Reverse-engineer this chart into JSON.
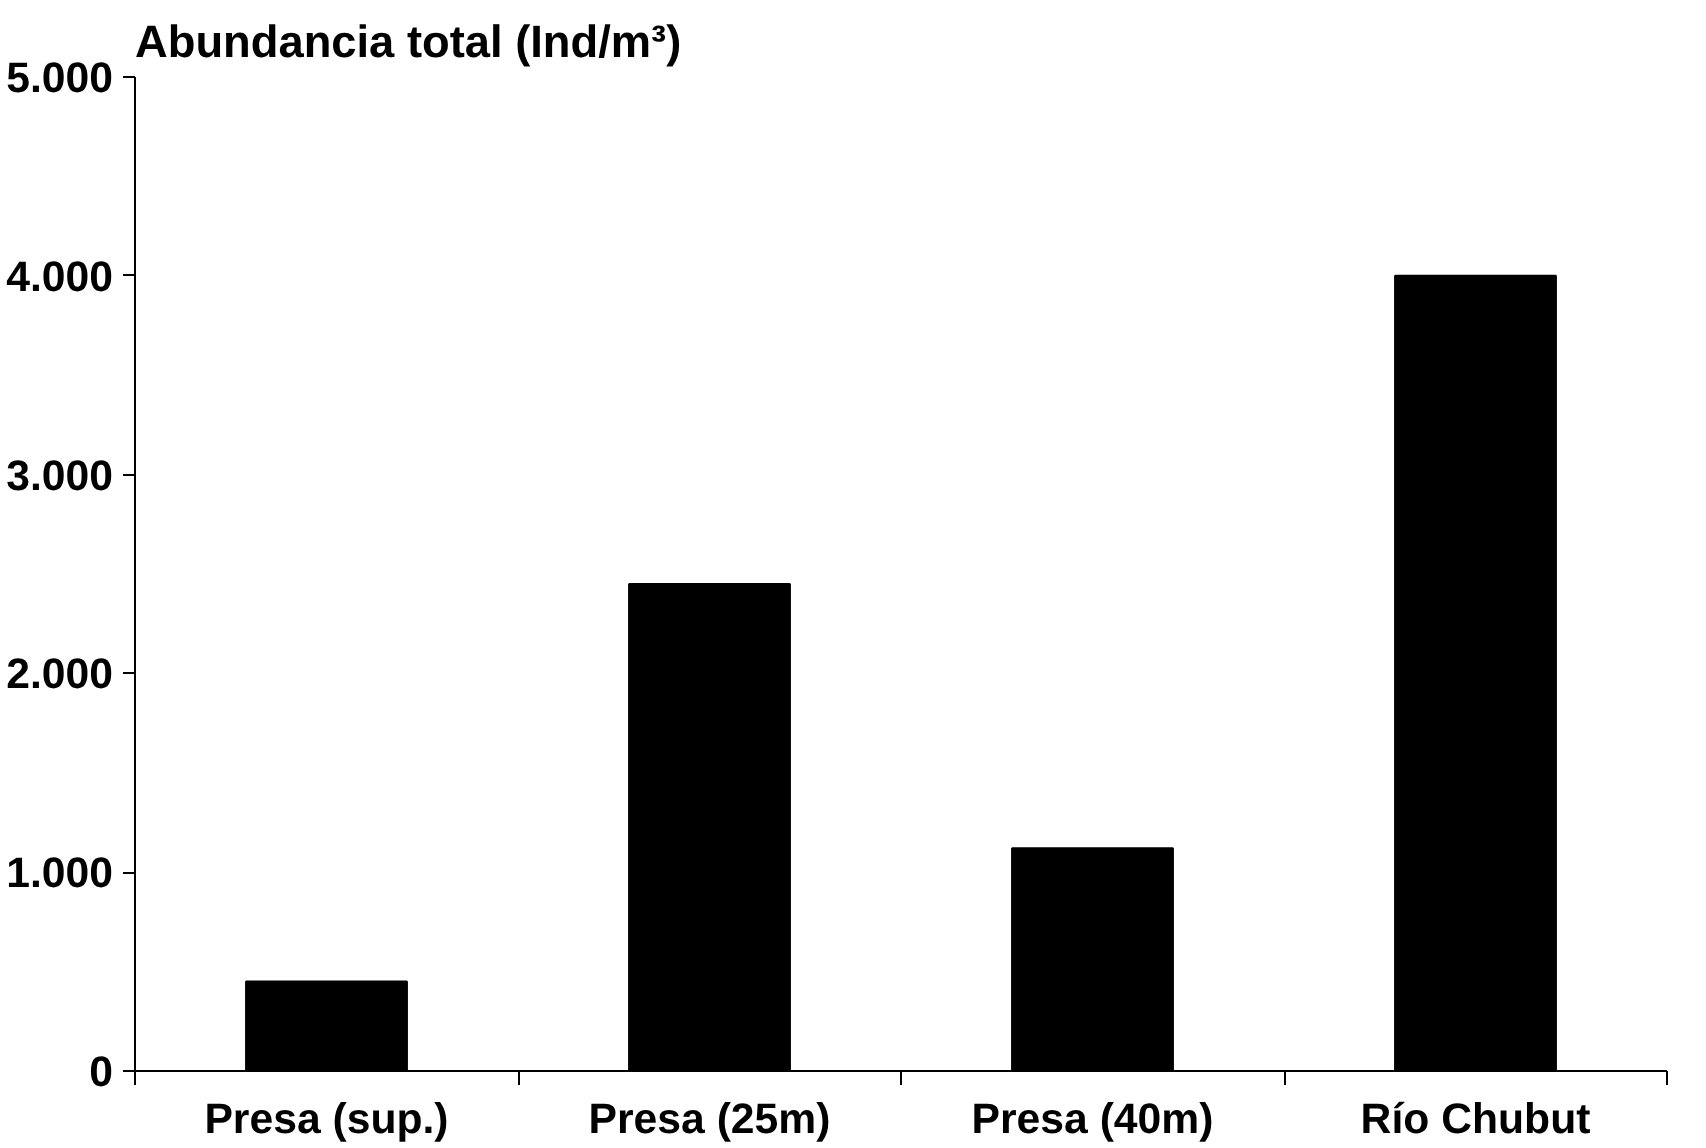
{
  "chart_data": {
    "type": "bar",
    "ylabel": "Abundancia total (Ind/m³)",
    "categories": [
      "Presa (sup.)",
      "Presa (25m)",
      "Presa (40m)",
      "Río Chubut"
    ],
    "values": [
      450,
      2450,
      1120,
      4000
    ],
    "color": "#000000",
    "ylim": [
      0,
      5000
    ],
    "yticks": [
      0,
      {
        "value": 1000,
        "label": "1.000"
      },
      {
        "value": 2000,
        "label": "2.000"
      },
      {
        "value": 3000,
        "label": "3.000"
      },
      {
        "value": 4000,
        "label": "4.000"
      },
      {
        "value": 5000,
        "label": "5.000"
      }
    ],
    "grid": false
  }
}
